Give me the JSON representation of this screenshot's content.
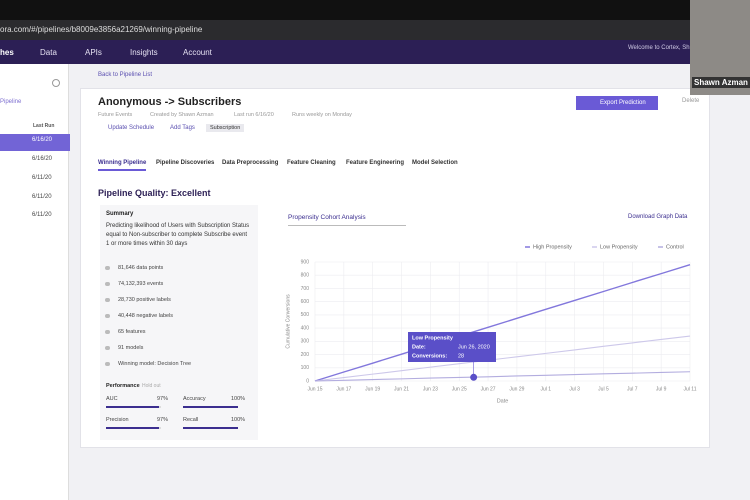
{
  "browser": {
    "url": "ora.com/#/pipelines/b8009e3856a21269/winning-pipeline"
  },
  "nav": {
    "items": [
      "hes",
      "Data",
      "APIs",
      "Insights",
      "Account"
    ],
    "welcome": "Welcome to Cortex, Sh"
  },
  "webcam": {
    "name": "Shawn Azman"
  },
  "sidebar": {
    "heading": "Pipeline",
    "column": "Last Run",
    "rows": [
      "6/16/20",
      "6/16/20",
      "6/11/20",
      "6/11/20",
      "6/11/20"
    ]
  },
  "header": {
    "back": "Back to Pipeline List",
    "title": "Anonymous -> Subscribers",
    "meta": [
      "Future Events",
      "Created by Shawn Azman",
      "Last run 6/16/20",
      "Runs weekly on Monday"
    ],
    "actions": [
      "Update Schedule",
      "Add Tags"
    ],
    "tag": "Subscription",
    "export": "Export Prediction",
    "delete": "Delete"
  },
  "tabs": [
    "Winning Pipeline",
    "Pipeline Discoveries",
    "Data Preprocessing",
    "Feature Cleaning",
    "Feature Engineering",
    "Model Selection"
  ],
  "quality": "Pipeline Quality: Excellent",
  "summary": {
    "heading": "Summary",
    "description": "Predicting likelihood of Users with Subscription Status equal to Non-subscriber to complete Subscribe event 1 or more times within 30 days",
    "stats": [
      "81,646 data points",
      "74,132,393 events",
      "28,730 positive labels",
      "40,448 negative labels",
      "65 features",
      "91 models",
      "Winning model: Decision Tree"
    ],
    "performance_heading": "Performance",
    "performance_note": "Hold out",
    "metrics": [
      {
        "name": "AUC",
        "value": 97,
        "label": "97%"
      },
      {
        "name": "Accuracy",
        "value": 100,
        "label": "100%"
      },
      {
        "name": "Precision",
        "value": 97,
        "label": "97%"
      },
      {
        "name": "Recall",
        "value": 100,
        "label": "100%"
      }
    ]
  },
  "chart_controls": {
    "dropdown": "Propensity Cohort Analysis",
    "download": "Download Graph Data"
  },
  "chart_data": {
    "type": "line",
    "x_label": "Date",
    "y_label": "Cumulative Conversions",
    "categories": [
      "Jun 15",
      "Jun 17",
      "Jun 19",
      "Jun 21",
      "Jun 23",
      "Jun 25",
      "Jun 27",
      "Jun 29",
      "Jul 1",
      "Jul 3",
      "Jul 5",
      "Jul 7",
      "Jul 9",
      "Jul 11"
    ],
    "series": [
      {
        "name": "High Propensity",
        "color": "#8277dc",
        "values": [
          0,
          68,
          135,
          203,
          271,
          338,
          406,
          474,
          542,
          609,
          677,
          745,
          812,
          880
        ]
      },
      {
        "name": "Low Propensity",
        "color": "#cdc8ea",
        "values": [
          0,
          26,
          52,
          78,
          105,
          131,
          157,
          183,
          209,
          235,
          262,
          288,
          314,
          340
        ]
      },
      {
        "name": "Control",
        "color": "#b3addf",
        "values": [
          0,
          5,
          11,
          16,
          22,
          27,
          32,
          38,
          43,
          49,
          54,
          59,
          65,
          70
        ]
      }
    ],
    "ylim": [
      0,
      900
    ],
    "yticks": [
      0,
      100,
      200,
      300,
      400,
      500,
      600,
      700,
      800,
      900
    ],
    "grid": true,
    "legend": "top-right",
    "tooltip": {
      "title": "Low Propensity",
      "date_label": "Date:",
      "date": "Jun 26, 2020",
      "conversions_label": "Conversions:",
      "conversions": 28
    }
  }
}
